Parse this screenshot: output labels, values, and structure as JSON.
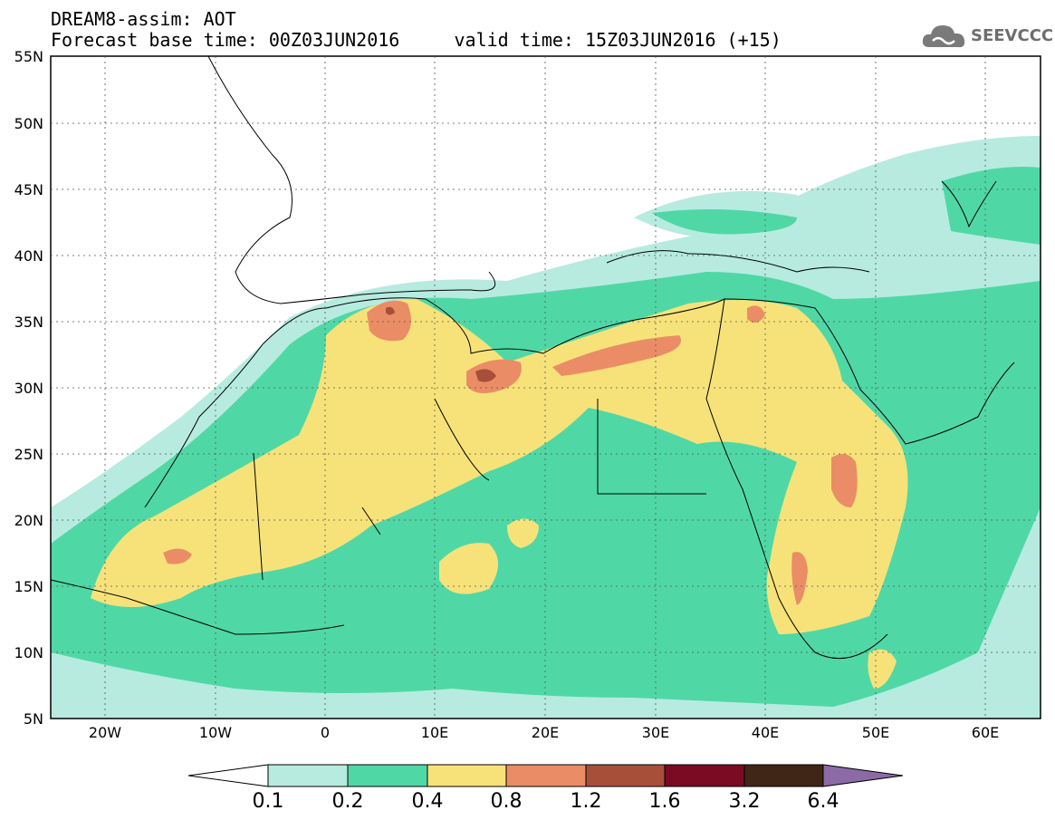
{
  "header": {
    "title_line1": "DREAM8-assim: AOT",
    "title_line2": "Forecast base time: 00Z03JUN2016     valid time: 15Z03JUN2016 (+15)"
  },
  "logo": {
    "text": "SEEVCCC",
    "icon": "cloud-icon"
  },
  "map": {
    "lat_labels": [
      "55N",
      "50N",
      "45N",
      "40N",
      "35N",
      "30N",
      "25N",
      "20N",
      "15N",
      "10N",
      "5N"
    ],
    "lon_labels": [
      "20W",
      "10W",
      "0",
      "10E",
      "20E",
      "30E",
      "40E",
      "50E",
      "60E"
    ],
    "field": "AOT",
    "legend_colors": {
      "0.1-0.2": "#b7ebe0",
      "0.2-0.4": "#4fd8a6",
      "0.4-0.8": "#f7e27a",
      "0.8-1.2": "#ea8d66",
      "1.2-1.6": "#a84f3a",
      "1.6-3.2": "#7b0b23",
      "3.2-6.4": "#3f2616",
      ">6.4": "#8c6aa6"
    }
  },
  "colorbar": {
    "labels": [
      "0.1",
      "0.2",
      "0.4",
      "0.8",
      "1.2",
      "1.6",
      "3.2",
      "6.4"
    ],
    "colors": [
      "#b7ebe0",
      "#4fd8a6",
      "#f7e27a",
      "#ea8d66",
      "#a84f3a",
      "#7b0b23",
      "#3f2616"
    ],
    "under_color": "#ffffff",
    "over_color": "#8c6aa6"
  }
}
